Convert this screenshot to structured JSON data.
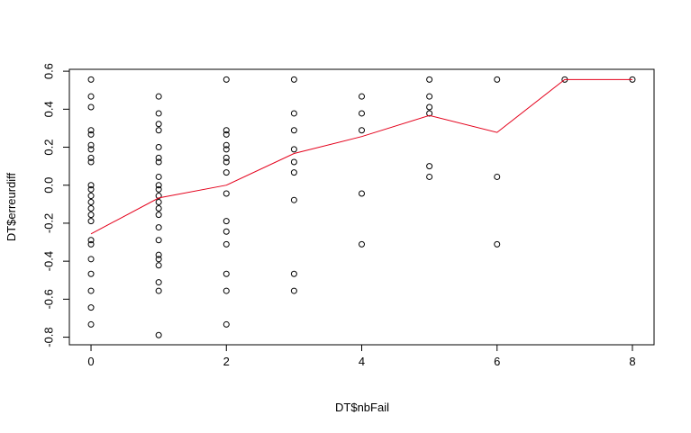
{
  "chart_data": {
    "type": "scatter",
    "xlabel": "DT$nbFail",
    "ylabel": "DT$erreurdiff",
    "xlim": [
      -0.32,
      8.32
    ],
    "ylim": [
      -0.84,
      0.61
    ],
    "x_ticks": [
      0,
      2,
      4,
      6,
      8
    ],
    "y_ticks": [
      -0.8,
      -0.6,
      -0.4,
      -0.2,
      0.0,
      0.2,
      0.4,
      0.6
    ],
    "x_tick_labels": [
      "0",
      "2",
      "4",
      "6",
      "8"
    ],
    "y_tick_labels": [
      "-0.8",
      "-0.6",
      "-0.4",
      "-0.2",
      "0.0",
      "0.2",
      "0.4",
      "0.6"
    ],
    "grid": false,
    "line_color": "#e4001b",
    "point_color": "#000000",
    "points": [
      {
        "x": 0,
        "y": 0.556
      },
      {
        "x": 0,
        "y": 0.467
      },
      {
        "x": 0,
        "y": 0.411
      },
      {
        "x": 0,
        "y": 0.289
      },
      {
        "x": 0,
        "y": 0.267
      },
      {
        "x": 0,
        "y": 0.211
      },
      {
        "x": 0,
        "y": 0.189
      },
      {
        "x": 0,
        "y": 0.144
      },
      {
        "x": 0,
        "y": 0.122
      },
      {
        "x": 0,
        "y": 0.0
      },
      {
        "x": 0,
        "y": -0.022
      },
      {
        "x": 0,
        "y": -0.056
      },
      {
        "x": 0,
        "y": -0.089
      },
      {
        "x": 0,
        "y": -0.122
      },
      {
        "x": 0,
        "y": -0.156
      },
      {
        "x": 0,
        "y": -0.189
      },
      {
        "x": 0,
        "y": -0.289
      },
      {
        "x": 0,
        "y": -0.311
      },
      {
        "x": 0,
        "y": -0.389
      },
      {
        "x": 0,
        "y": -0.467
      },
      {
        "x": 0,
        "y": -0.556
      },
      {
        "x": 0,
        "y": -0.644
      },
      {
        "x": 0,
        "y": -0.733
      },
      {
        "x": 1,
        "y": 0.467
      },
      {
        "x": 1,
        "y": 0.378
      },
      {
        "x": 1,
        "y": 0.322
      },
      {
        "x": 1,
        "y": 0.289
      },
      {
        "x": 1,
        "y": 0.2
      },
      {
        "x": 1,
        "y": 0.144
      },
      {
        "x": 1,
        "y": 0.122
      },
      {
        "x": 1,
        "y": 0.044
      },
      {
        "x": 1,
        "y": 0.0
      },
      {
        "x": 1,
        "y": -0.022
      },
      {
        "x": 1,
        "y": -0.056
      },
      {
        "x": 1,
        "y": -0.089
      },
      {
        "x": 1,
        "y": -0.122
      },
      {
        "x": 1,
        "y": -0.156
      },
      {
        "x": 1,
        "y": -0.222
      },
      {
        "x": 1,
        "y": -0.289
      },
      {
        "x": 1,
        "y": -0.367
      },
      {
        "x": 1,
        "y": -0.389
      },
      {
        "x": 1,
        "y": -0.422
      },
      {
        "x": 1,
        "y": -0.511
      },
      {
        "x": 1,
        "y": -0.556
      },
      {
        "x": 1,
        "y": -0.789
      },
      {
        "x": 2,
        "y": 0.556
      },
      {
        "x": 2,
        "y": 0.289
      },
      {
        "x": 2,
        "y": 0.267
      },
      {
        "x": 2,
        "y": 0.211
      },
      {
        "x": 2,
        "y": 0.189
      },
      {
        "x": 2,
        "y": 0.144
      },
      {
        "x": 2,
        "y": 0.122
      },
      {
        "x": 2,
        "y": 0.067
      },
      {
        "x": 2,
        "y": -0.044
      },
      {
        "x": 2,
        "y": -0.189
      },
      {
        "x": 2,
        "y": -0.244
      },
      {
        "x": 2,
        "y": -0.311
      },
      {
        "x": 2,
        "y": -0.467
      },
      {
        "x": 2,
        "y": -0.556
      },
      {
        "x": 2,
        "y": -0.733
      },
      {
        "x": 3,
        "y": 0.556
      },
      {
        "x": 3,
        "y": 0.378
      },
      {
        "x": 3,
        "y": 0.289
      },
      {
        "x": 3,
        "y": 0.189
      },
      {
        "x": 3,
        "y": 0.122
      },
      {
        "x": 3,
        "y": 0.067
      },
      {
        "x": 3,
        "y": -0.078
      },
      {
        "x": 3,
        "y": -0.467
      },
      {
        "x": 3,
        "y": -0.556
      },
      {
        "x": 4,
        "y": 0.467
      },
      {
        "x": 4,
        "y": 0.378
      },
      {
        "x": 4,
        "y": 0.289
      },
      {
        "x": 4,
        "y": -0.044
      },
      {
        "x": 4,
        "y": -0.311
      },
      {
        "x": 5,
        "y": 0.556
      },
      {
        "x": 5,
        "y": 0.467
      },
      {
        "x": 5,
        "y": 0.411
      },
      {
        "x": 5,
        "y": 0.378
      },
      {
        "x": 5,
        "y": 0.1
      },
      {
        "x": 5,
        "y": 0.044
      },
      {
        "x": 6,
        "y": 0.556
      },
      {
        "x": 6,
        "y": 0.044
      },
      {
        "x": 6,
        "y": -0.311
      },
      {
        "x": 7,
        "y": 0.556
      },
      {
        "x": 8,
        "y": 0.556
      }
    ],
    "line": [
      {
        "x": 0,
        "y": -0.256
      },
      {
        "x": 1,
        "y": -0.067
      },
      {
        "x": 2,
        "y": 0.0
      },
      {
        "x": 3,
        "y": 0.167
      },
      {
        "x": 4,
        "y": 0.256
      },
      {
        "x": 5,
        "y": 0.367
      },
      {
        "x": 6,
        "y": 0.278
      },
      {
        "x": 7,
        "y": 0.556
      },
      {
        "x": 8,
        "y": 0.556
      }
    ]
  }
}
